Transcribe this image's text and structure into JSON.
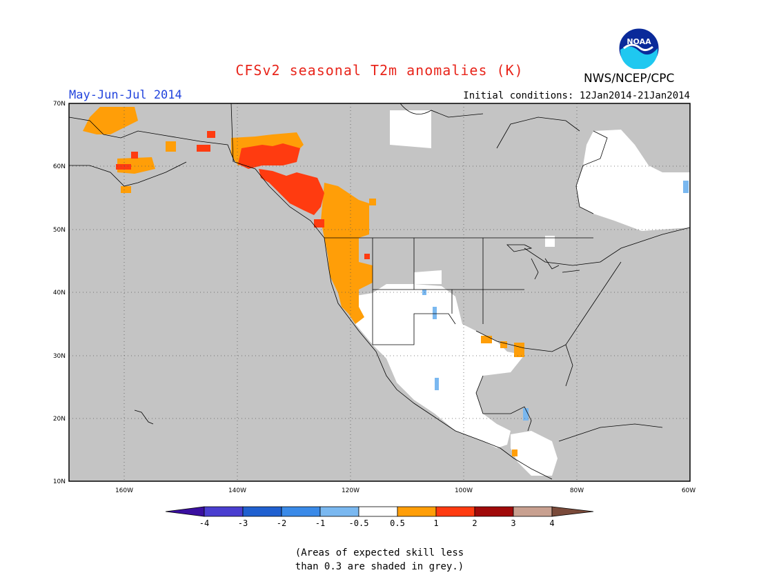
{
  "title": "CFSv2 seasonal T2m anomalies (K)",
  "season": "May-Jun-Jul 2014",
  "initial_conditions": "Initial conditions: 12Jan2014-21Jan2014",
  "agency": "NWS/NCEP/CPC",
  "logo_text": "NOAA",
  "map": {
    "lat_ticks": [
      "70N",
      "60N",
      "50N",
      "40N",
      "30N",
      "20N",
      "10N"
    ],
    "lon_ticks": [
      "160W",
      "140W",
      "120W",
      "100W",
      "80W",
      "60W"
    ],
    "colors": {
      "grey": "#c4c4c4",
      "land_white": "#ffffff",
      "ocean_grey": "#c4c4c4"
    }
  },
  "colorbar": {
    "labels": [
      "-4",
      "-3",
      "-2",
      "-1",
      "-0.5",
      "0.5",
      "1",
      "2",
      "3",
      "4"
    ],
    "colors": [
      "#3a0fa0",
      "#4a3ed0",
      "#2060d0",
      "#3a8ae8",
      "#7ab8f0",
      "#ffffff",
      "#ff9e08",
      "#ff3b10",
      "#a00a0a",
      "#c8a090",
      "#7a4a3a"
    ]
  },
  "note_line1": "(Areas of expected skill less",
  "note_line2": "than 0.3 are shaded in grey.)"
}
